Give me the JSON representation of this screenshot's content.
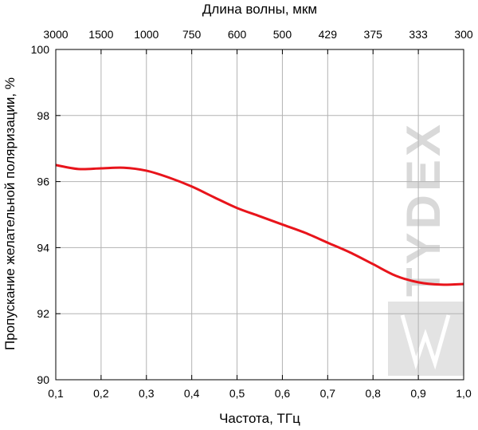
{
  "chart_data": {
    "type": "line",
    "xlabel": "Частота, ТГц",
    "ylabel": "Пропускание желательной поляризации, %",
    "x2label": "Длина волны, мкм",
    "xlim": [
      0.1,
      1.0
    ],
    "ylim": [
      90,
      100
    ],
    "x_ticks": [
      0.1,
      0.2,
      0.3,
      0.4,
      0.5,
      0.6,
      0.7,
      0.8,
      0.9,
      1.0
    ],
    "x_tick_labels": [
      "0,1",
      "0,2",
      "0,3",
      "0,4",
      "0,5",
      "0,6",
      "0,7",
      "0,8",
      "0,9",
      "1,0"
    ],
    "y_ticks": [
      90,
      92,
      94,
      96,
      98,
      100
    ],
    "y_tick_labels": [
      "90",
      "92",
      "94",
      "96",
      "98",
      "100"
    ],
    "x2_ticks": [
      0.1,
      0.2,
      0.3,
      0.4,
      0.5,
      0.6,
      0.7,
      0.8,
      0.9,
      1.0
    ],
    "x2_tick_labels": [
      "3000",
      "1500",
      "1000",
      "750",
      "600",
      "500",
      "429",
      "375",
      "333",
      "300"
    ],
    "grid": true,
    "series": [
      {
        "color": "#e8141b",
        "x": [
          0.1,
          0.15,
          0.2,
          0.25,
          0.3,
          0.35,
          0.4,
          0.45,
          0.5,
          0.55,
          0.6,
          0.65,
          0.7,
          0.75,
          0.8,
          0.85,
          0.9,
          0.95,
          1.0
        ],
        "y": [
          96.5,
          96.38,
          96.4,
          96.42,
          96.33,
          96.12,
          95.85,
          95.52,
          95.2,
          94.95,
          94.7,
          94.45,
          94.15,
          93.85,
          93.5,
          93.15,
          92.95,
          92.88,
          92.9
        ]
      }
    ]
  },
  "watermark": {
    "text": "TYDEX"
  }
}
